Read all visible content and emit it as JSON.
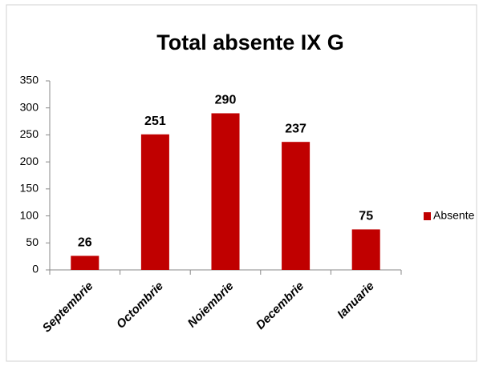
{
  "chart_data": {
    "type": "bar",
    "title": "Total absente IX G",
    "categories": [
      "Septembrie",
      "Octombrie",
      "Noiembrie",
      "Decembrie",
      "Ianuarie"
    ],
    "series": [
      {
        "name": "Absente",
        "color": "#c00000",
        "values": [
          26,
          251,
          290,
          237,
          75
        ]
      }
    ],
    "ylim": [
      0,
      350
    ],
    "yticks": [
      0,
      50,
      100,
      150,
      200,
      250,
      300,
      350
    ],
    "grid": false,
    "legend": "right"
  }
}
